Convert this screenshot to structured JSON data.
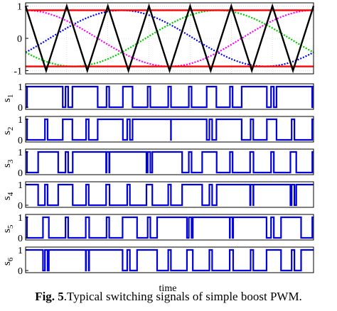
{
  "colors": {
    "carrier": "#000000",
    "reference_a": "#ff00ff",
    "reference_b": "#00cc00",
    "reference_c": "#0000ff",
    "shoot_through_limit": "#ff0000",
    "switching_signal": "#0000dd",
    "grid": "#c8c8c8"
  },
  "caption": {
    "label": "Fig. 5",
    "text": ".Typical switching signals of simple boost PWM."
  },
  "chart_data": {
    "type": "line",
    "xlabel": "time",
    "x_range": [
      0,
      1
    ],
    "panels": [
      {
        "id": "modulation",
        "ylim": [
          -1.1,
          1.1
        ],
        "yticks": [
          "1",
          "0",
          "-1"
        ],
        "ytick_values": [
          1,
          0,
          -1
        ],
        "grid": true,
        "carrier_periods": 7,
        "carrier_amplitude": 1,
        "boost_limit_upper": 0.87,
        "boost_limit_lower": -0.87,
        "reference_amplitude": 0.87,
        "reference_phases_deg": [
          90,
          330,
          210
        ]
      },
      {
        "id": "s1",
        "label": "s",
        "sub": "1",
        "ylim": [
          0,
          1
        ],
        "yticks": [
          "1",
          "0"
        ],
        "ytick_values": [
          1,
          0
        ],
        "phase_deg": 90,
        "kind": "upper"
      },
      {
        "id": "s2",
        "label": "s",
        "sub": "2",
        "ylim": [
          0,
          1
        ],
        "yticks": [
          "1",
          "0"
        ],
        "ytick_values": [
          1,
          0
        ],
        "phase_deg": 90,
        "kind": "lower"
      },
      {
        "id": "s3",
        "label": "s",
        "sub": "3",
        "ylim": [
          0,
          1
        ],
        "yticks": [
          "1",
          "0"
        ],
        "ytick_values": [
          1,
          0
        ],
        "phase_deg": 330,
        "kind": "upper"
      },
      {
        "id": "s4",
        "label": "s",
        "sub": "4",
        "ylim": [
          0,
          1
        ],
        "yticks": [
          "1",
          "0"
        ],
        "ytick_values": [
          1,
          0
        ],
        "phase_deg": 330,
        "kind": "lower"
      },
      {
        "id": "s5",
        "label": "s",
        "sub": "5",
        "ylim": [
          0,
          1
        ],
        "yticks": [
          "1",
          "0"
        ],
        "ytick_values": [
          1,
          0
        ],
        "phase_deg": 210,
        "kind": "upper"
      },
      {
        "id": "s6",
        "label": "s",
        "sub": "6",
        "ylim": [
          0,
          1
        ],
        "yticks": [
          "1",
          "0"
        ],
        "ytick_values": [
          1,
          0
        ],
        "phase_deg": 210,
        "kind": "lower"
      }
    ]
  }
}
